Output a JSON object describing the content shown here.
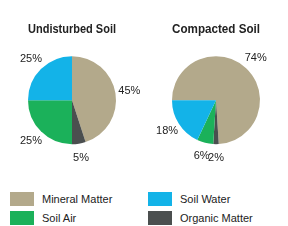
{
  "chart_data": [
    {
      "type": "pie",
      "title": "Undisturbed Soil",
      "categories": [
        "Mineral Matter",
        "Organic Matter",
        "Soil Air",
        "Soil Water"
      ],
      "values": [
        45,
        5,
        25,
        25
      ],
      "value_labels": [
        "45%",
        "5%",
        "25%",
        "25%"
      ],
      "colors": [
        "#b3a98b",
        "#4b4f4f",
        "#1bb15a",
        "#13b3e8"
      ],
      "data_labels": true,
      "legend": "bottom"
    },
    {
      "type": "pie",
      "title": "Compacted Soil",
      "categories": [
        "Mineral Matter",
        "Organic Matter",
        "Soil Air",
        "Soil Water"
      ],
      "values": [
        74,
        2,
        6,
        18
      ],
      "value_labels": [
        "74%",
        "2%",
        "6%",
        "18%"
      ],
      "colors": [
        "#b3a98b",
        "#4b4f4f",
        "#1bb15a",
        "#13b3e8"
      ],
      "data_labels": true
    }
  ]
}
